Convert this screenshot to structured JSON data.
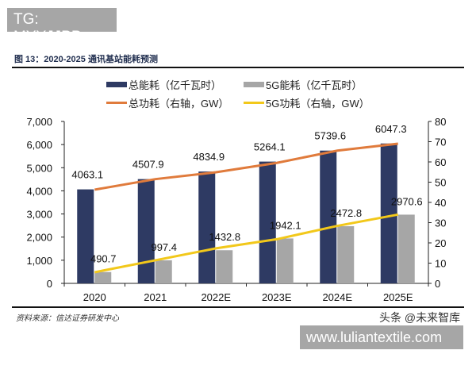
{
  "watermarks": {
    "top": "TG: MYYJJPP",
    "bottom": "www.luliantextile.com",
    "brand": "头条 @未来智库"
  },
  "source": "资料来源：信达证券研发中心",
  "chart_data": {
    "type": "bar+line",
    "title": "图 13：2020-2025 通讯基站能耗预测",
    "categories": [
      "2020",
      "2021",
      "2022E",
      "2023E",
      "2024E",
      "2025E"
    ],
    "left_axis": {
      "ylim": [
        0,
        7000
      ],
      "ticks": [
        "0",
        "1,000",
        "2,000",
        "3,000",
        "4,000",
        "5,000",
        "6,000",
        "7,000"
      ]
    },
    "right_axis": {
      "ylim": [
        0,
        80
      ],
      "ticks": [
        "0",
        "10",
        "20",
        "30",
        "40",
        "50",
        "60",
        "70",
        "80"
      ]
    },
    "series": [
      {
        "name": "总能耗（亿千瓦时）",
        "type": "bar",
        "axis": "left",
        "color": "#2e3a63",
        "values": [
          4063.1,
          4507.9,
          4834.9,
          5264.1,
          5739.6,
          6047.3
        ],
        "labels": [
          "4063.1",
          "4507.9",
          "4834.9",
          "5264.1",
          "5739.6",
          "6047.3"
        ]
      },
      {
        "name": "5G能耗（亿千瓦时）",
        "type": "bar",
        "axis": "left",
        "color": "#a6a6a6",
        "values": [
          490.7,
          997.4,
          1432.8,
          1942.1,
          2472.8,
          2970.6
        ],
        "labels": [
          "490.7",
          "997.4",
          "1432.8",
          "1942.1",
          "2472.8",
          "2970.6"
        ]
      },
      {
        "name": "总功耗（右轴，GW）",
        "type": "line",
        "axis": "right",
        "color": "#e07b3c",
        "values": [
          46.3,
          51.5,
          54.9,
          59.5,
          65.6,
          69.0
        ]
      },
      {
        "name": "5G功耗（右轴，GW）",
        "type": "line",
        "axis": "right",
        "color": "#f2c81a",
        "values": [
          5.5,
          11.4,
          17.3,
          21.8,
          28.4,
          34.0
        ]
      }
    ],
    "grid": false,
    "legend": "top"
  }
}
